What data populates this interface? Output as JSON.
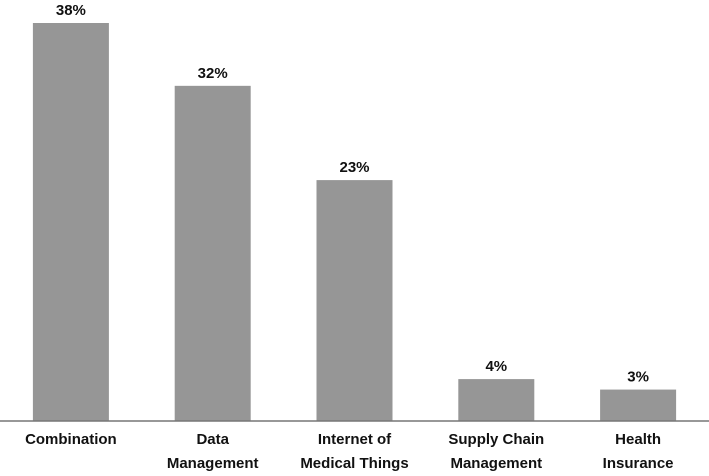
{
  "chart_data": {
    "type": "bar",
    "categories": [
      "Combination",
      "Data\nManagement",
      "Internet of\nMedical Things",
      "Supply Chain\nManagement",
      "Health\nInsurance"
    ],
    "values": [
      38,
      32,
      23,
      4,
      3
    ],
    "value_labels": [
      "38%",
      "32%",
      "23%",
      "4%",
      "3%"
    ],
    "color": "#969696"
  }
}
